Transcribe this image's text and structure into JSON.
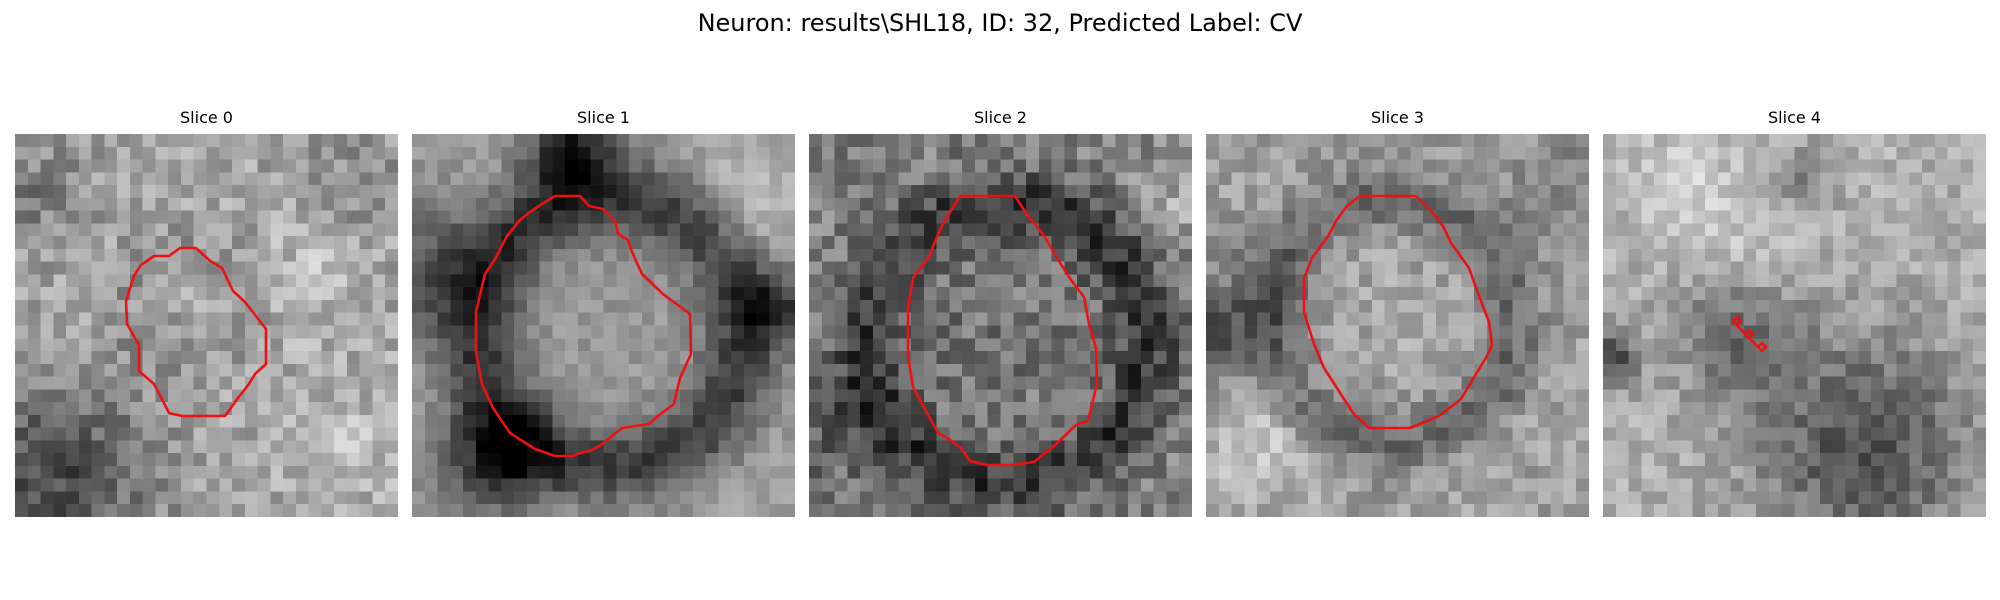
{
  "figure": {
    "title": "Neuron: results\\SHL18, ID: 32, Predicted Label: CV"
  },
  "colors": {
    "contour": "#ee1111",
    "background": "#ffffff"
  },
  "panels": [
    {
      "title": "Slice 0"
    },
    {
      "title": "Slice 1"
    },
    {
      "title": "Slice 2"
    },
    {
      "title": "Slice 3"
    },
    {
      "title": "Slice 4"
    }
  ]
}
